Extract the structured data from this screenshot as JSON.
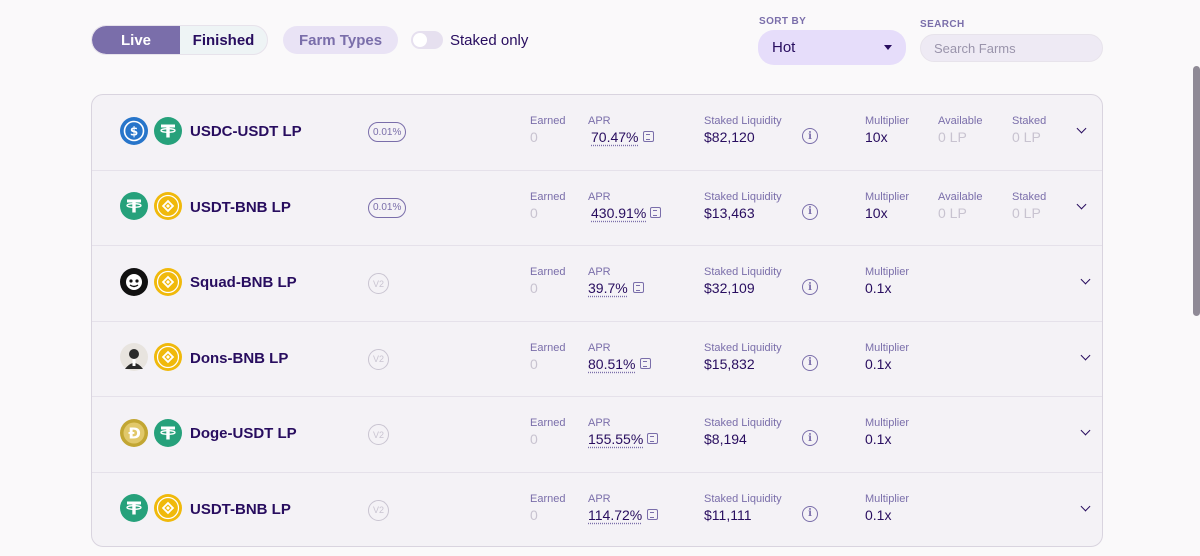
{
  "filters": {
    "live_label": "Live",
    "finished_label": "Finished",
    "farm_types_label": "Farm Types",
    "staked_only_label": "Staked only",
    "staked_only_on": false
  },
  "sort": {
    "label": "SORT BY",
    "value": "Hot"
  },
  "search": {
    "label": "SEARCH",
    "placeholder": "Search Farms"
  },
  "columns": {
    "earned": "Earned",
    "apr": "APR",
    "liquidity": "Staked Liquidity",
    "multiplier": "Multiplier",
    "available": "Available",
    "staked": "Staked"
  },
  "farms": [
    {
      "pair": "USDC-USDT LP",
      "badge": "0.01%",
      "earned": "0",
      "apr": "70.47%",
      "liquidity": "$82,120",
      "multiplier": "10x",
      "available": "0 LP",
      "staked": "0 LP",
      "token1": "usdc-icon",
      "token2": "usdt-icon"
    },
    {
      "pair": "USDT-BNB LP",
      "badge": "0.01%",
      "earned": "0",
      "apr": "430.91%",
      "liquidity": "$13,463",
      "multiplier": "10x",
      "available": "0 LP",
      "staked": "0 LP",
      "token1": "usdt-icon",
      "token2": "bnb-icon"
    },
    {
      "pair": "Squad-BNB LP",
      "badge": "V2",
      "earned": "0",
      "apr": "39.7%",
      "liquidity": "$32,109",
      "multiplier": "0.1x",
      "token1": "squad-icon",
      "token2": "bnb-icon"
    },
    {
      "pair": "Dons-BNB LP",
      "badge": "V2",
      "earned": "0",
      "apr": "80.51%",
      "liquidity": "$15,832",
      "multiplier": "0.1x",
      "token1": "dons-icon",
      "token2": "bnb-icon"
    },
    {
      "pair": "Doge-USDT LP",
      "badge": "V2",
      "earned": "0",
      "apr": "155.55%",
      "liquidity": "$8,194",
      "multiplier": "0.1x",
      "token1": "doge-icon",
      "token2": "usdt-icon"
    },
    {
      "pair": "USDT-BNB LP",
      "badge": "V2",
      "earned": "0",
      "apr": "114.72%",
      "liquidity": "$11,111",
      "multiplier": "0.1x",
      "token1": "usdt-icon",
      "token2": "bnb-icon"
    }
  ],
  "colors": {
    "accent": "#7a6eaa",
    "text": "#280d5f",
    "usdc": "#2775ca",
    "usdt": "#26a17b",
    "bnb": "#f0b90b",
    "doge": "#c2a633"
  }
}
